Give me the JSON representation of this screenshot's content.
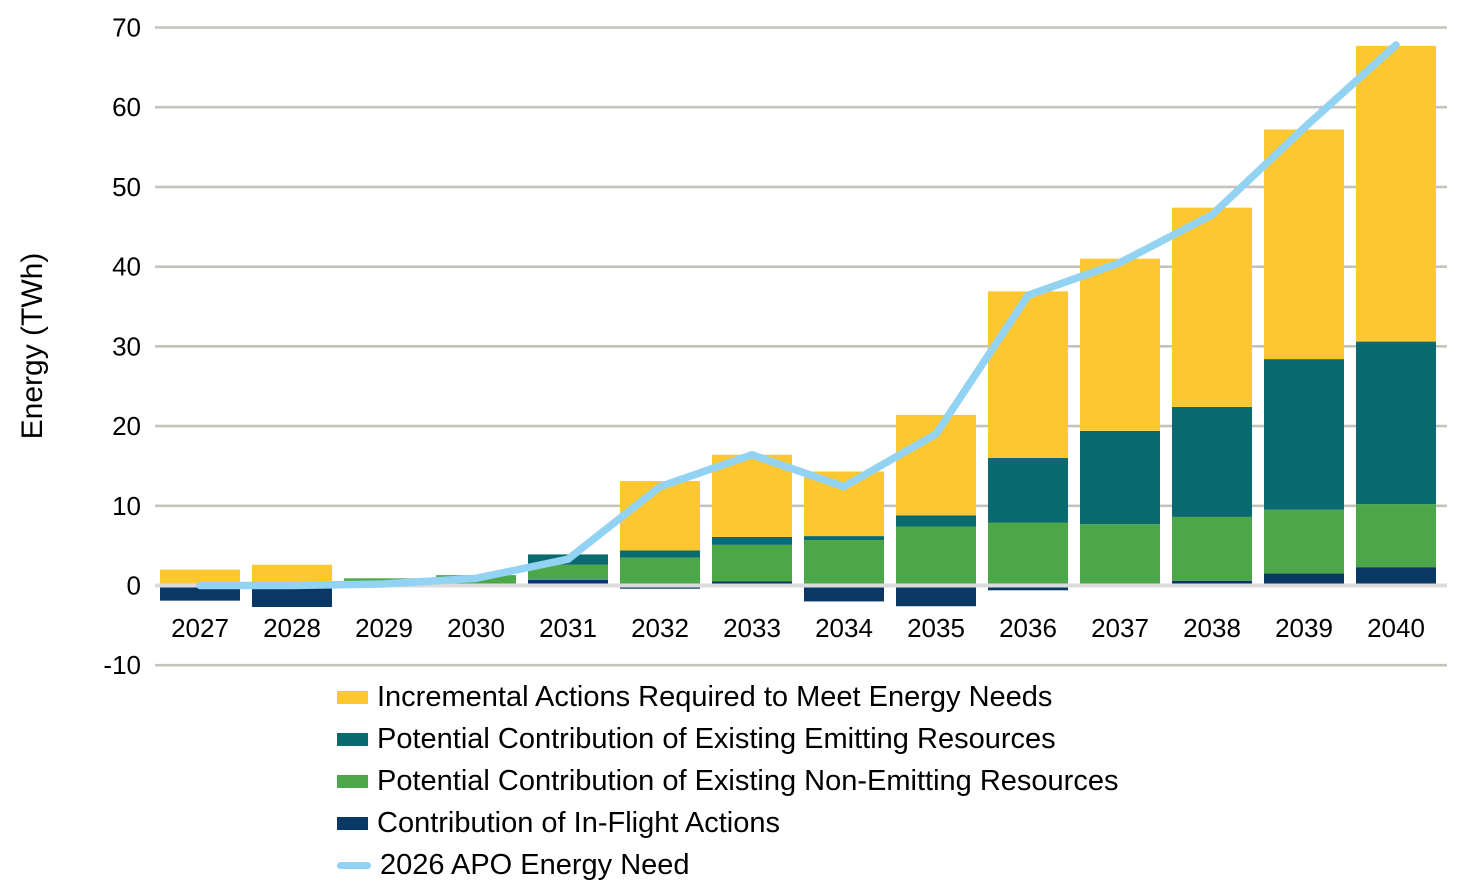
{
  "chart_data": {
    "type": "bar",
    "stacked": true,
    "title": "",
    "xlabel": "",
    "ylabel": "Energy (TWh)",
    "ylim": [
      -10,
      70
    ],
    "yticks": [
      70,
      60,
      50,
      40,
      30,
      20,
      10,
      0,
      -10
    ],
    "grid": true,
    "grid_color": "#C4C4BC",
    "zero_line_color": "#DBDBDB",
    "text_color": "#000000",
    "legend_position": "bottom-left",
    "categories": [
      "2027",
      "2028",
      "2029",
      "2030",
      "2031",
      "2032",
      "2033",
      "2034",
      "2035",
      "2036",
      "2037",
      "2038",
      "2039",
      "2040"
    ],
    "series": [
      {
        "name": "Incremental Actions Required to Meet Energy Needs",
        "color": "#FDC82F",
        "values": [
          2.0,
          2.6,
          0,
          0,
          0,
          8.7,
          10.3,
          8.1,
          12.6,
          20.9,
          21.6,
          25.0,
          28.8,
          37.1
        ]
      },
      {
        "name": "Potential Contribution of Existing Emitting Resources",
        "color": "#0A6A70",
        "values": [
          0,
          0,
          0,
          0,
          1.3,
          0.9,
          1.0,
          0.5,
          1.4,
          8.1,
          11.7,
          13.8,
          18.9,
          20.4
        ]
      },
      {
        "name": "Potential Contribution of Existing Non-Emitting Resources",
        "color": "#4BA747",
        "values": [
          0,
          0,
          0.9,
          1.3,
          1.9,
          3.5,
          4.6,
          5.7,
          7.4,
          7.9,
          7.7,
          8.0,
          8.0,
          7.9
        ]
      },
      {
        "name": "Contribution of In-Flight Actions",
        "color": "#083863",
        "values": [
          -1.9,
          -2.7,
          0,
          0,
          0.7,
          -0.4,
          0.5,
          -2.0,
          -2.6,
          -0.6,
          0,
          0.6,
          1.5,
          2.3
        ]
      }
    ],
    "line_series": {
      "name": "2026 APO Energy Need",
      "color": "#92D2F2",
      "values": [
        0,
        0,
        0.2,
        0.9,
        3.3,
        12.4,
        16.4,
        12.4,
        19.0,
        36.4,
        40.5,
        46.5,
        57.4,
        67.8
      ]
    }
  }
}
